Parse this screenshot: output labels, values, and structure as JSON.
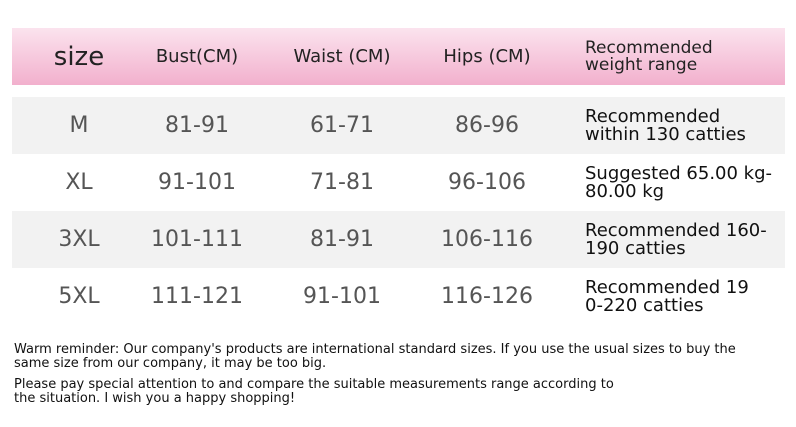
{
  "table": {
    "header": [
      "size",
      "Bust(CM)",
      "Waist (CM)",
      "Hips (CM)",
      "Recommended\nweight range"
    ],
    "rows": [
      [
        "M",
        "81-91",
        "61-71",
        "86-96",
        "Recommended\nwithin 130 catties"
      ],
      [
        "XL",
        "91-101",
        "71-81",
        "96-106",
        "Suggested 65.00 kg-\n80.00 kg"
      ],
      [
        "3XL",
        "101-111",
        "81-91",
        "106-116",
        "Recommended 160-\n190 catties"
      ],
      [
        "5XL",
        "111-121",
        "91-101",
        "116-126",
        "Recommended 19\n0-220 catties"
      ]
    ]
  },
  "notes": [
    "Warm reminder: Our company's products are international standard sizes. If you use the usual sizes to buy the\nsame size from our company, it may be too big.",
    "Please pay special attention to and compare the suitable measurements range according to\nthe situation. I wish you a happy shopping!"
  ]
}
